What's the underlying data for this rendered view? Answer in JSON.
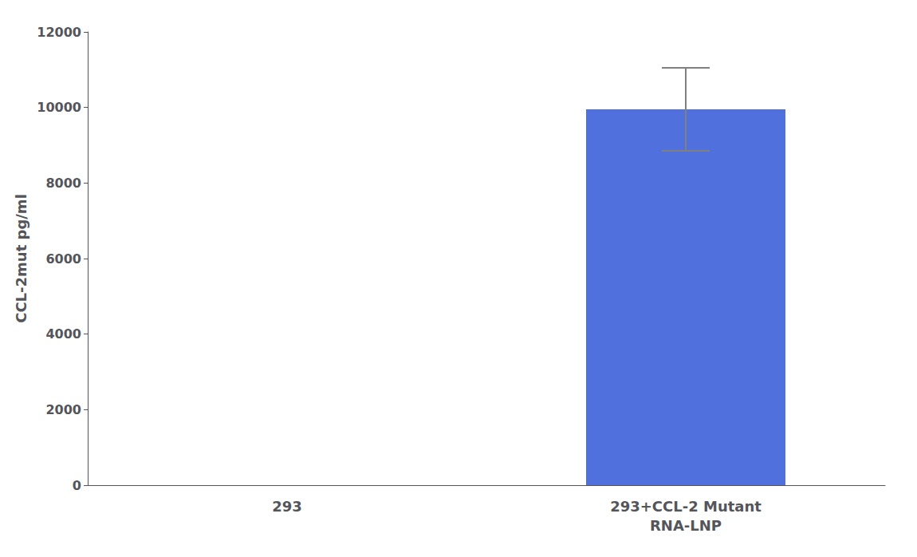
{
  "chart_data": {
    "type": "bar",
    "categories": [
      "293",
      "293+CCL-2 Mutant\nRNA-LNP"
    ],
    "values": [
      0,
      9950
    ],
    "errors": [
      0,
      1100
    ],
    "ylabel": "CCL-2mut pg/ml",
    "ylim": [
      0,
      12000
    ],
    "yticks": [
      0,
      2000,
      4000,
      6000,
      8000,
      10000,
      12000
    ],
    "grid": false
  }
}
